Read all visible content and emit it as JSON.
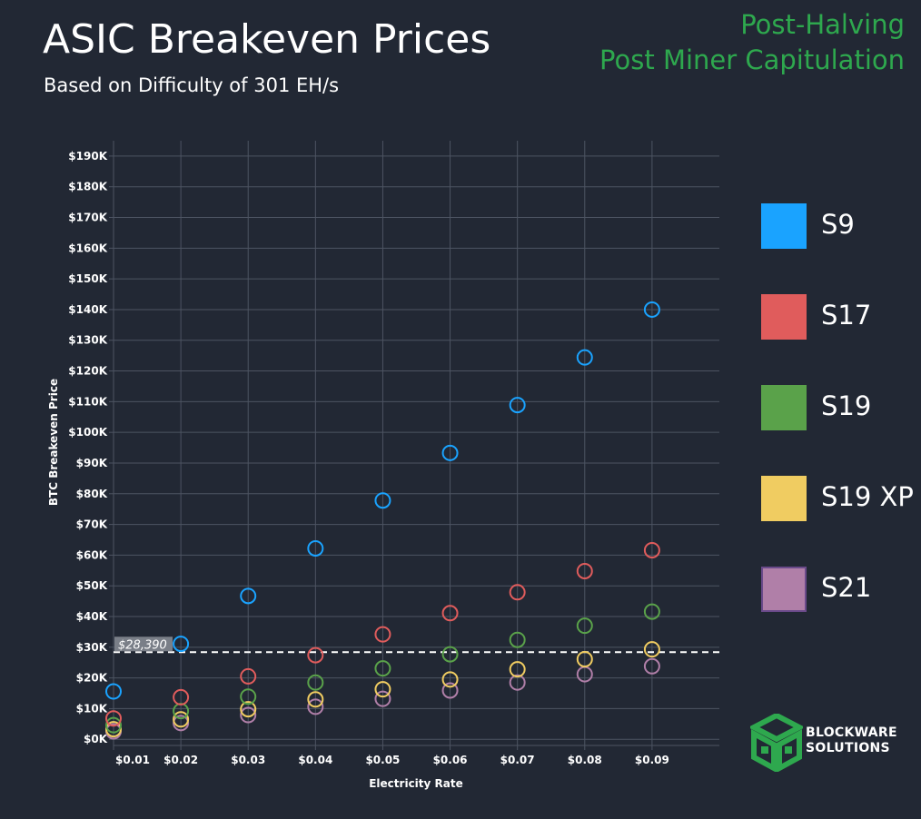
{
  "header": {
    "title": "ASIC Breakeven Prices",
    "subtitle": "Based on Difficulty of 301 EH/s",
    "tag_line1": "Post-Halving",
    "tag_line2": "Post Miner Capitulation"
  },
  "colors": {
    "background": "#222834",
    "accent_green": "#2ea84e",
    "grid": "#4d5462"
  },
  "chart_data": {
    "type": "scatter",
    "title": "ASIC Breakeven Prices",
    "xlabel": "Electricity Rate",
    "ylabel": "BTC Breakeven Price",
    "x": [
      0.01,
      0.02,
      0.03,
      0.04,
      0.05,
      0.06,
      0.07,
      0.08,
      0.09
    ],
    "x_tick_labels": [
      "$0.01",
      "$0.02",
      "$0.03",
      "$0.04",
      "$0.05",
      "$0.06",
      "$0.07",
      "$0.08",
      "$0.09"
    ],
    "xlim": [
      0.01,
      0.1
    ],
    "ylim": [
      -2,
      195
    ],
    "y_tick_values": [
      0,
      10,
      20,
      30,
      40,
      50,
      60,
      70,
      80,
      90,
      100,
      110,
      120,
      130,
      140,
      150,
      160,
      170,
      180,
      190
    ],
    "y_tick_labels": [
      "$0K",
      "$10K",
      "$20K",
      "$30K",
      "$40K",
      "$50K",
      "$60K",
      "$70K",
      "$80K",
      "$90K",
      "$100K",
      "$110K",
      "$120K",
      "$130K",
      "$140K",
      "$150K",
      "$160K",
      "$170K",
      "$180K",
      "$190K"
    ],
    "y_units": "thousands USD",
    "grid": true,
    "reference_line": {
      "value": 28.39,
      "label": "$28,390"
    },
    "series": [
      {
        "name": "S9",
        "color": "#1aa3ff",
        "values": [
          15.6,
          31.1,
          46.7,
          62.2,
          77.8,
          93.3,
          108.9,
          124.4,
          140.0
        ]
      },
      {
        "name": "S17",
        "color": "#e05c5c",
        "values": [
          6.8,
          13.7,
          20.5,
          27.4,
          34.2,
          41.1,
          47.9,
          54.8,
          61.6
        ]
      },
      {
        "name": "S19",
        "color": "#5aa24a",
        "values": [
          4.6,
          9.2,
          13.9,
          18.5,
          23.1,
          27.7,
          32.4,
          37.0,
          41.6
        ]
      },
      {
        "name": "S19 XP",
        "color": "#f0cc61",
        "values": [
          3.3,
          6.5,
          9.8,
          13.0,
          16.3,
          19.5,
          22.8,
          26.1,
          29.3
        ]
      },
      {
        "name": "S21",
        "color": "#b07fa8",
        "values": [
          2.6,
          5.3,
          7.9,
          10.6,
          13.2,
          15.9,
          18.5,
          21.2,
          23.8
        ]
      }
    ],
    "legend_position": "right"
  },
  "logo": {
    "line1": "BLOCKWARE",
    "line2": "SOLUTIONS"
  }
}
